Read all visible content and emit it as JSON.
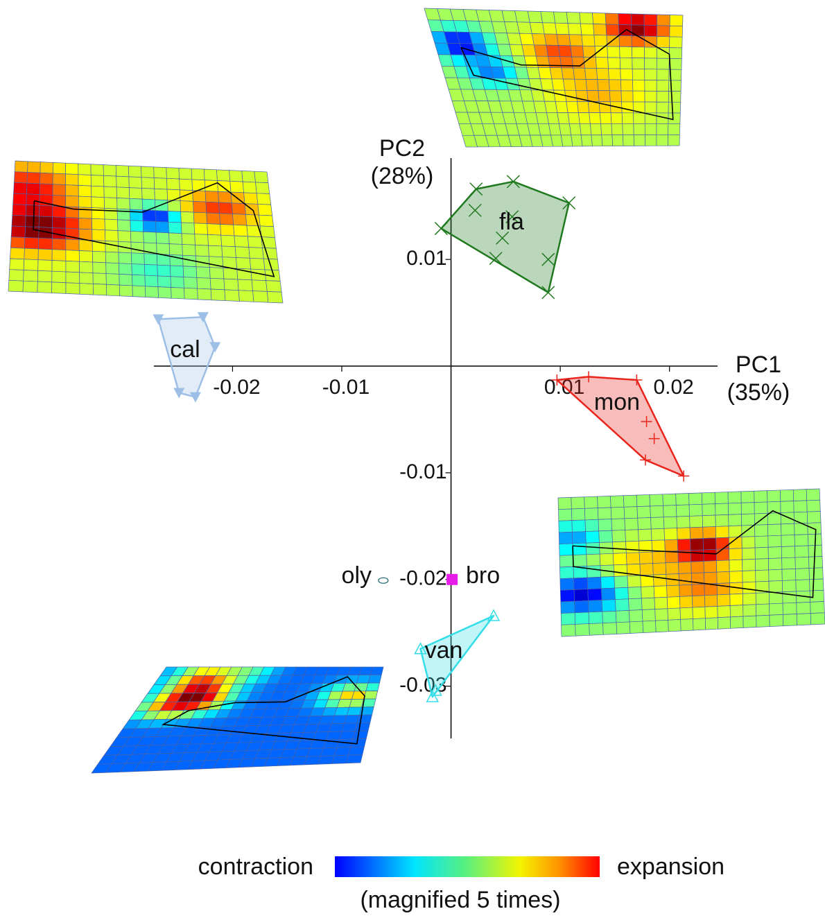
{
  "chart_data": {
    "type": "scatter",
    "xlabel": [
      "PC1",
      "(35%)"
    ],
    "ylabel": [
      "PC2",
      "(28%)"
    ],
    "xlim": [
      -0.0272,
      0.0244
    ],
    "ylim": [
      -0.0349,
      0.0195
    ],
    "xticks": [
      -0.02,
      -0.01,
      0.01,
      0.02
    ],
    "yticks": [
      -0.03,
      -0.02,
      -0.01,
      0.01
    ],
    "series": [
      {
        "name": "fla",
        "color": "#1f7a1f",
        "marker": "x",
        "x": [
          -0.0009,
          0.0023,
          0.0057,
          0.0108,
          0.0022,
          0.0056,
          0.0047,
          0.0041,
          0.0089,
          0.0089
        ],
        "values": [
          0.0129,
          0.0166,
          0.0173,
          0.0153,
          0.0146,
          0.014,
          0.012,
          0.0101,
          0.01,
          0.0069
        ]
      },
      {
        "name": "mon",
        "color": "#e8241c",
        "marker": "plus",
        "x": [
          0.0097,
          0.0126,
          0.017,
          0.0179,
          0.0186,
          0.0178,
          0.0213
        ],
        "values": [
          -0.0013,
          -0.001,
          -0.0013,
          -0.0052,
          -0.0068,
          -0.0088,
          -0.0103
        ]
      },
      {
        "name": "cal",
        "color": "#9dbfe6",
        "marker": "triangle-down",
        "x": [
          -0.0268,
          -0.0227,
          -0.0216,
          -0.0249,
          -0.0234
        ],
        "values": [
          0.0044,
          0.0046,
          0.0018,
          -0.0025,
          -0.0029
        ]
      },
      {
        "name": "van",
        "color": "#33dde8",
        "marker": "triangle-open",
        "x": [
          0.0039,
          -0.0028,
          -0.0014,
          -0.0017
        ],
        "values": [
          -0.0234,
          -0.0265,
          -0.0304,
          -0.031
        ]
      },
      {
        "name": "bro",
        "color": "#e81ce8",
        "marker": "square",
        "x": [
          0.0001
        ],
        "values": [
          -0.02
        ]
      },
      {
        "name": "oly",
        "color": "#2a6e7a",
        "marker": "ellipse",
        "x": [
          -0.0062
        ],
        "values": [
          -0.0201
        ]
      }
    ],
    "colorbar": {
      "low": "contraction",
      "high": "expansion",
      "note": "(magnified 5 times)"
    }
  }
}
